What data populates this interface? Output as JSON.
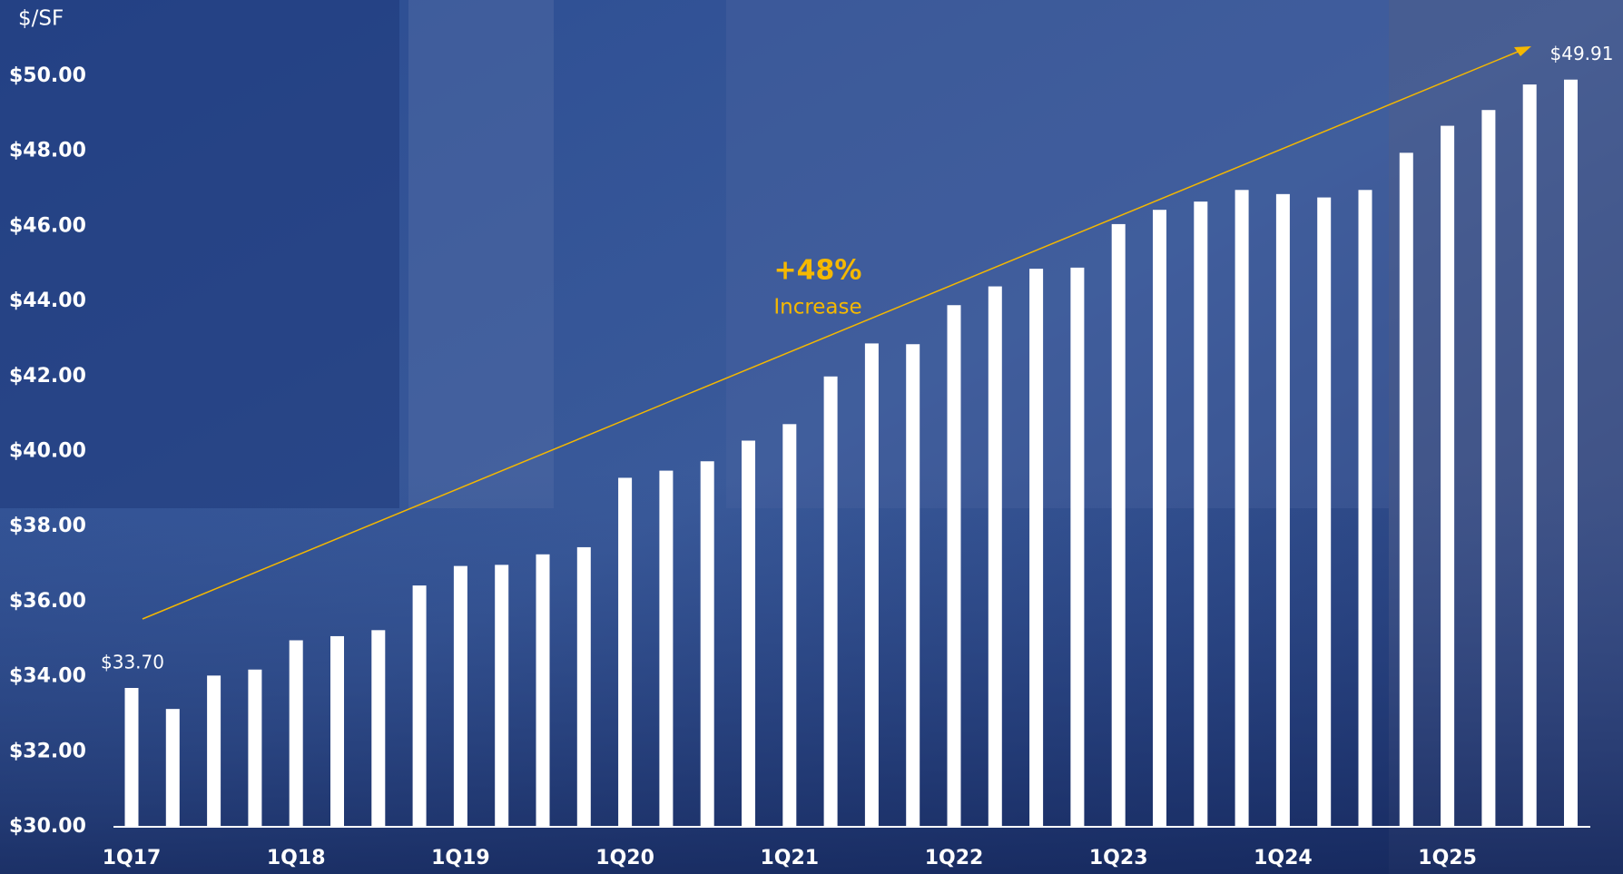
{
  "chart_data": {
    "type": "bar",
    "y_axis_title": "$/SF",
    "annotation": "+48%",
    "annotation_sub": "Increase",
    "categories": [
      "1Q17",
      null,
      null,
      null,
      "1Q18",
      null,
      null,
      null,
      "1Q19",
      null,
      null,
      null,
      "1Q20",
      null,
      null,
      null,
      "1Q21",
      null,
      null,
      null,
      "1Q22",
      null,
      null,
      null,
      "1Q23",
      null,
      null,
      null,
      "1Q24",
      null,
      null,
      null,
      "1Q25",
      null,
      null,
      null
    ],
    "values": [
      33.7,
      33.14,
      34.03,
      34.19,
      34.97,
      35.08,
      35.24,
      36.43,
      36.95,
      36.98,
      37.26,
      37.45,
      39.3,
      39.49,
      39.74,
      40.29,
      40.73,
      42.0,
      42.88,
      42.86,
      43.9,
      44.4,
      44.87,
      44.9,
      46.06,
      46.44,
      46.66,
      46.97,
      46.86,
      46.77,
      46.97,
      47.96,
      48.68,
      49.1,
      49.78,
      49.91
    ],
    "value_labels": [
      "$33.70",
      null,
      null,
      null,
      null,
      null,
      null,
      null,
      null,
      null,
      null,
      null,
      null,
      null,
      null,
      null,
      null,
      null,
      null,
      null,
      null,
      null,
      null,
      null,
      null,
      null,
      null,
      null,
      null,
      null,
      null,
      null,
      null,
      null,
      null,
      "$49.91"
    ],
    "color": "#ffffff",
    "trend_color": "#f5b800",
    "ylim": [
      30,
      50
    ],
    "yticks": [
      {
        "value": 30,
        "label": "$30.00"
      },
      {
        "value": 32,
        "label": "$32.00"
      },
      {
        "value": 34,
        "label": "$34.00"
      },
      {
        "value": 36,
        "label": "$36.00"
      },
      {
        "value": 38,
        "label": "$38.00"
      },
      {
        "value": 40,
        "label": "$40.00"
      },
      {
        "value": 42,
        "label": "$42.00"
      },
      {
        "value": 44,
        "label": "$44.00"
      },
      {
        "value": 46,
        "label": "$46.00"
      },
      {
        "value": 48,
        "label": "$48.00"
      },
      {
        "value": 50,
        "label": "$50.00"
      }
    ],
    "grid": false
  }
}
